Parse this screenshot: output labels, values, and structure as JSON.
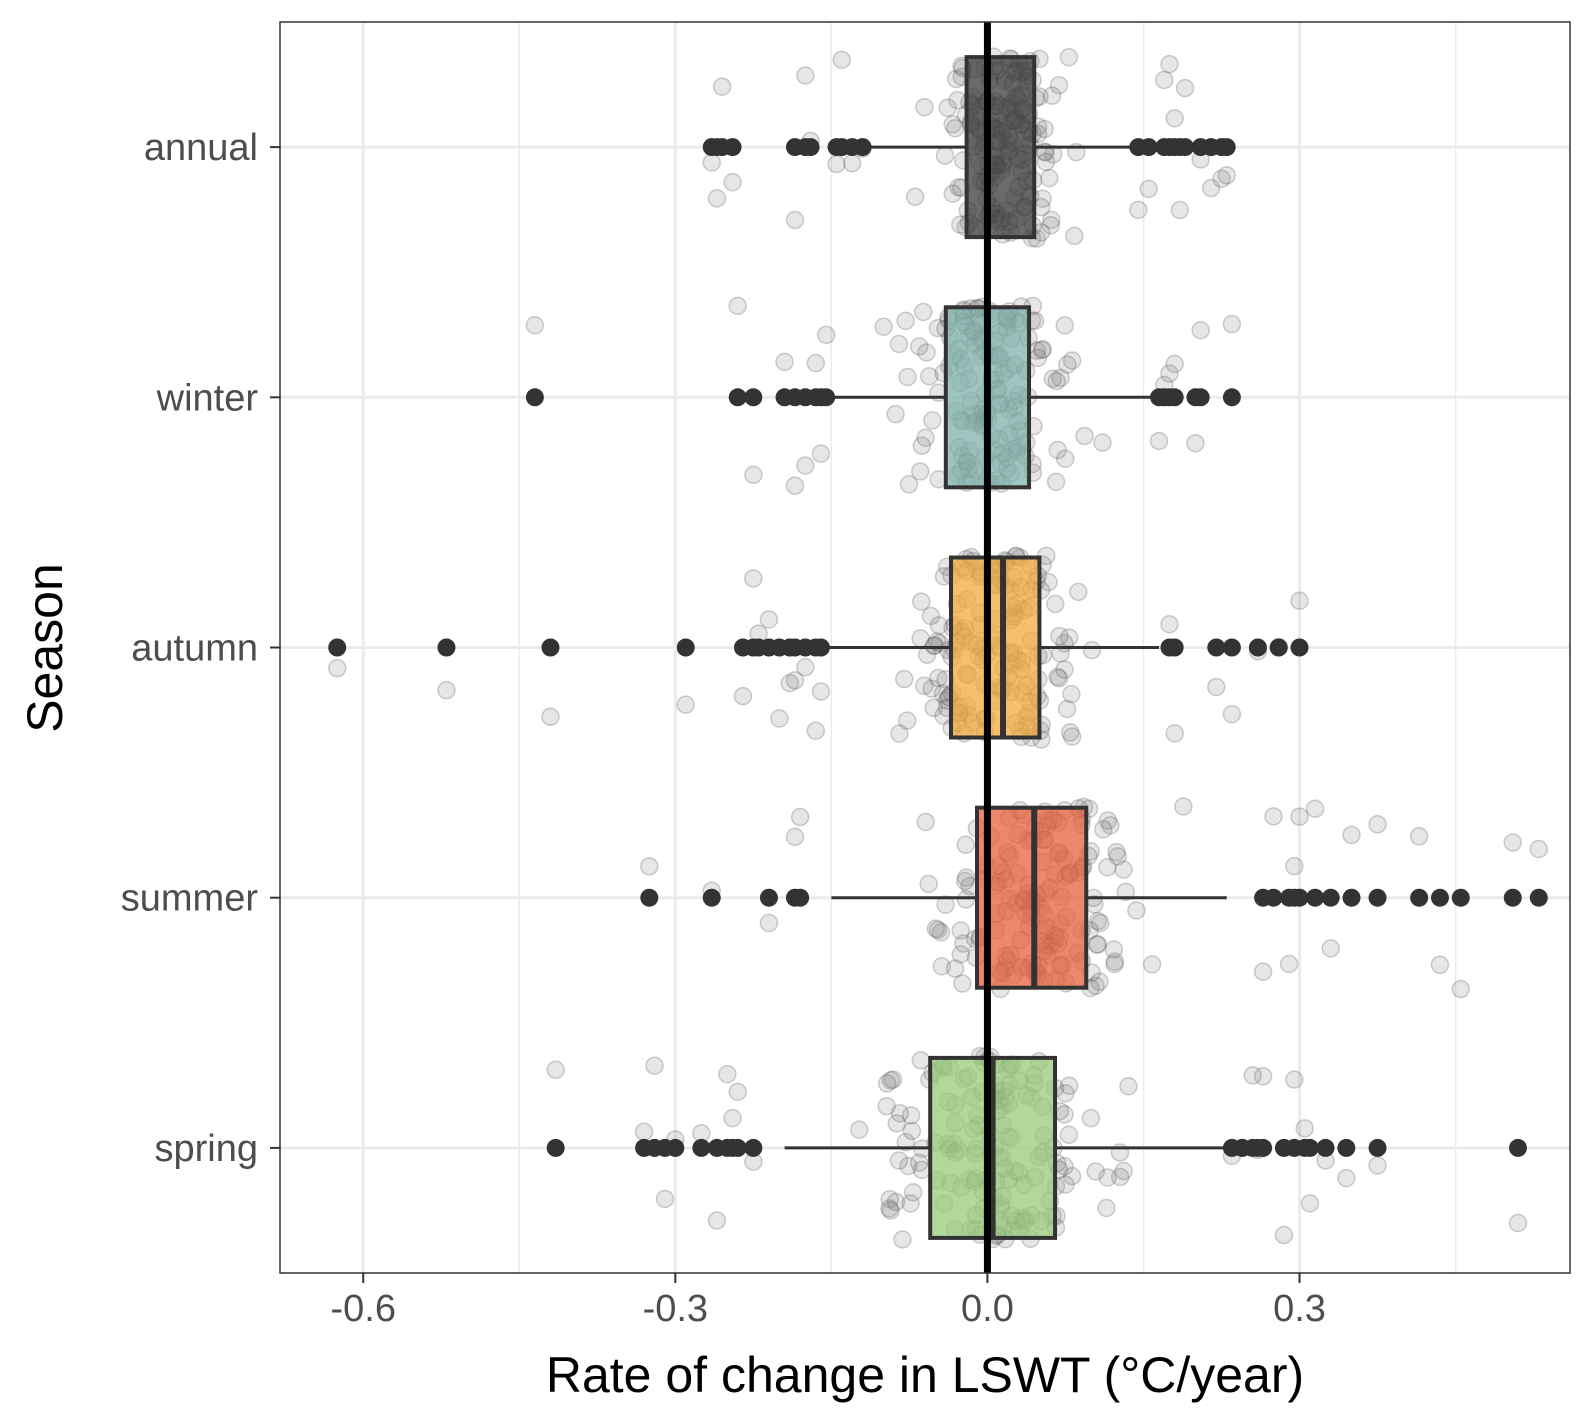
{
  "chart_data": {
    "type": "boxplot",
    "orientation": "horizontal",
    "xlabel": "Rate of change in LSWT (°C/year)",
    "ylabel": "Season",
    "xlim": [
      -0.68,
      0.56
    ],
    "x_ticks": [
      -0.6,
      -0.3,
      0.0,
      0.3
    ],
    "x_tick_labels": [
      "-0.6",
      "-0.3",
      "0.0",
      "0.3"
    ],
    "grid": true,
    "reference_line_x": 0.0,
    "categories": [
      "annual",
      "winter",
      "autumn",
      "summer",
      "spring"
    ],
    "colors": {
      "annual": "#3a3a3a",
      "winter": "#7fb2ab",
      "autumn": "#f2a93b",
      "summer": "#e8603c",
      "spring": "#98c97a",
      "outlier": "#333333",
      "jitter": "#999999",
      "grid": "#ebebeb",
      "zero_line": "#000000"
    },
    "boxes": [
      {
        "name": "annual",
        "whisker_low": -0.12,
        "q1": -0.02,
        "median": 0.0,
        "q3": 0.045,
        "whisker_high": 0.14,
        "outliers": [
          -0.265,
          -0.26,
          -0.255,
          -0.245,
          -0.185,
          -0.175,
          -0.17,
          -0.145,
          -0.14,
          -0.13,
          -0.12,
          0.145,
          0.155,
          0.17,
          0.175,
          0.18,
          0.185,
          0.19,
          0.205,
          0.215,
          0.225,
          0.23
        ]
      },
      {
        "name": "winter",
        "whisker_low": -0.15,
        "q1": -0.04,
        "median": 0.0,
        "q3": 0.04,
        "whisker_high": 0.165,
        "outliers": [
          -0.435,
          -0.24,
          -0.225,
          -0.195,
          -0.185,
          -0.175,
          -0.165,
          -0.16,
          -0.155,
          0.165,
          0.17,
          0.175,
          0.18,
          0.2,
          0.205,
          0.235
        ]
      },
      {
        "name": "autumn",
        "whisker_low": -0.155,
        "q1": -0.035,
        "median": 0.015,
        "q3": 0.05,
        "whisker_high": 0.165,
        "outliers": [
          -0.625,
          -0.52,
          -0.42,
          -0.29,
          -0.235,
          -0.225,
          -0.22,
          -0.21,
          -0.2,
          -0.19,
          -0.185,
          -0.175,
          -0.165,
          -0.16,
          0.175,
          0.18,
          0.22,
          0.235,
          0.26,
          0.28,
          0.3
        ]
      },
      {
        "name": "summer",
        "whisker_low": -0.15,
        "q1": -0.01,
        "median": 0.045,
        "q3": 0.095,
        "whisker_high": 0.23,
        "outliers": [
          -0.325,
          -0.265,
          -0.21,
          -0.185,
          -0.18,
          0.265,
          0.275,
          0.29,
          0.295,
          0.3,
          0.315,
          0.33,
          0.35,
          0.375,
          0.415,
          0.435,
          0.455,
          0.505,
          0.53
        ]
      },
      {
        "name": "spring",
        "whisker_low": -0.195,
        "q1": -0.055,
        "median": 0.005,
        "q3": 0.065,
        "whisker_high": 0.23,
        "outliers": [
          -0.415,
          -0.33,
          -0.32,
          -0.31,
          -0.3,
          -0.275,
          -0.26,
          -0.25,
          -0.245,
          -0.24,
          -0.225,
          0.235,
          0.245,
          0.255,
          0.26,
          0.265,
          0.285,
          0.295,
          0.305,
          0.31,
          0.325,
          0.345,
          0.375,
          0.51
        ]
      }
    ]
  }
}
